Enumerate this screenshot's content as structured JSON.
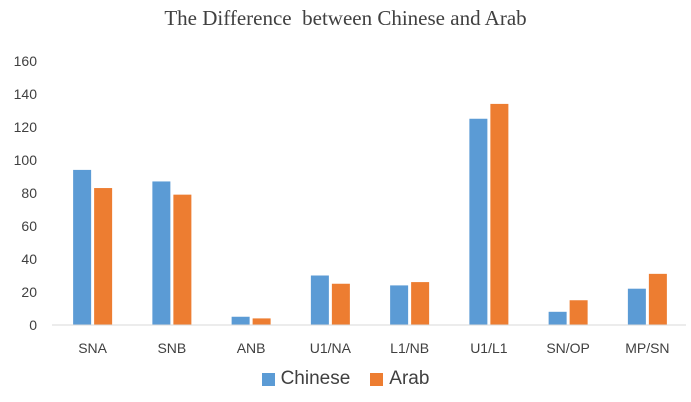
{
  "chart_data": {
    "type": "bar",
    "title": "The Difference  between Chinese and Arab",
    "categories": [
      "SNA",
      "SNB",
      "ANB",
      "U1/NA",
      "L1/NB",
      "U1/L1",
      "SN/OP",
      "MP/SN"
    ],
    "series": [
      {
        "name": "Chinese",
        "color": "#5B9BD5",
        "values": [
          94,
          87,
          5,
          30,
          24,
          125,
          8,
          22
        ]
      },
      {
        "name": "Arab",
        "color": "#ED7D31",
        "values": [
          83,
          79,
          4,
          25,
          26,
          134,
          15,
          31
        ]
      }
    ],
    "ylim": [
      0,
      160
    ],
    "yticks": [
      "0",
      "20",
      "40",
      "60",
      "80",
      "100",
      "120",
      "140",
      "160"
    ],
    "grid": false,
    "legend": "bottom"
  }
}
